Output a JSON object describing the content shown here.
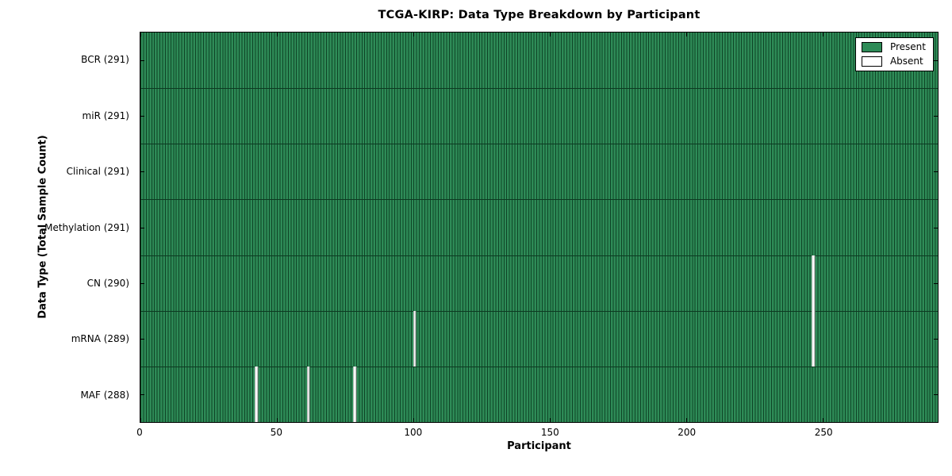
{
  "title": "TCGA-KIRP: Data Type Breakdown by Participant",
  "xlabel": "Participant",
  "ylabel": "Data Type (Total Sample Count)",
  "colors": {
    "present_fill": "#2e8b57",
    "bar_edge": "#0e4426",
    "row_divider": "#0c3a21",
    "absent_fill": "#ffffff",
    "spine": "#000000",
    "background": "#ffffff"
  },
  "chart_data": {
    "type": "heatmap",
    "title": "TCGA-KIRP: Data Type Breakdown by Participant",
    "xlabel": "Participant",
    "ylabel": "Data Type (Total Sample Count)",
    "n_participants": 291,
    "xlim": [
      0,
      292
    ],
    "x_ticks": [
      0,
      50,
      100,
      150,
      200,
      250
    ],
    "grid": false,
    "legend_position": "upper right",
    "rows": [
      {
        "label": "BCR (291)",
        "data_type": "BCR",
        "total": 291,
        "absent_participants": []
      },
      {
        "label": "miR (291)",
        "data_type": "miR",
        "total": 291,
        "absent_participants": []
      },
      {
        "label": "Clinical (291)",
        "data_type": "Clinical",
        "total": 291,
        "absent_participants": []
      },
      {
        "label": "Methylation (291)",
        "data_type": "Methylation",
        "total": 291,
        "absent_participants": []
      },
      {
        "label": "CN (290)",
        "data_type": "CN",
        "total": 290,
        "absent_participants": [
          246
        ]
      },
      {
        "label": "mRNA (289)",
        "data_type": "mRNA",
        "total": 289,
        "absent_participants": [
          100,
          246
        ]
      },
      {
        "label": "MAF (288)",
        "data_type": "MAF",
        "total": 288,
        "absent_participants": [
          42,
          61,
          78
        ]
      }
    ],
    "legend": [
      {
        "label": "Present",
        "color": "#2e8b57"
      },
      {
        "label": "Absent",
        "color": "#ffffff"
      }
    ]
  }
}
